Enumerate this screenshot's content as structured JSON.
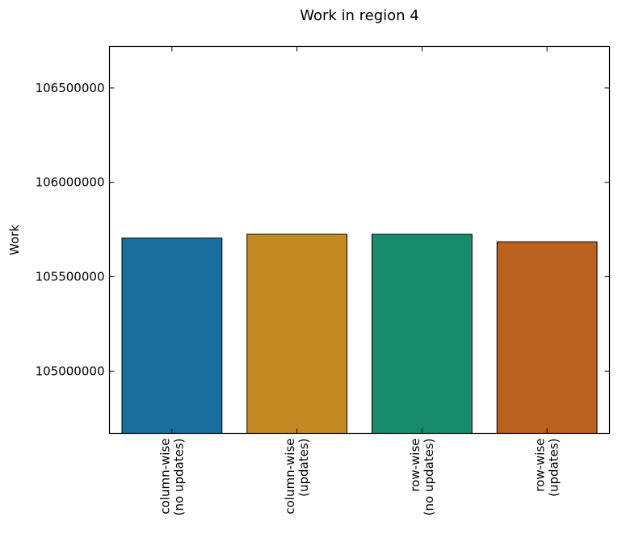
{
  "chart_data": {
    "type": "bar",
    "title": "Work in region 4",
    "xlabel": "",
    "ylabel": "Work",
    "categories": [
      [
        "column-wise",
        "(no updates)"
      ],
      [
        "column-wise",
        "(updates)"
      ],
      [
        "row-wise",
        "(no updates)"
      ],
      [
        "row-wise",
        "(updates)"
      ]
    ],
    "values": [
      105705000,
      105725000,
      105725000,
      105685000
    ],
    "colors": [
      "#1a6e9e",
      "#c48a22",
      "#168c6a",
      "#bb6120"
    ],
    "ylim": [
      104670000,
      106720000
    ],
    "yticks": [
      105000000,
      105500000,
      106000000,
      106500000
    ],
    "ytick_labels": [
      "105000000",
      "105500000",
      "106000000",
      "106500000"
    ],
    "grid": false,
    "legend": "none"
  }
}
